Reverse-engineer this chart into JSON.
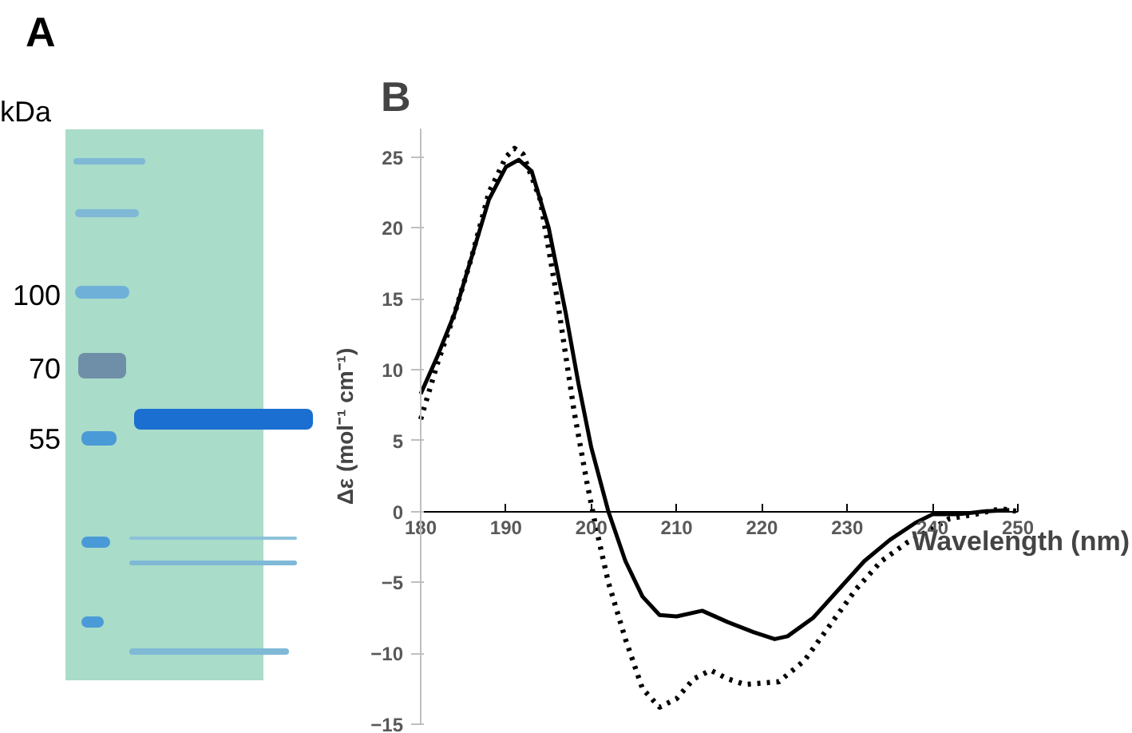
{
  "chart_data": [
    {
      "type": "other",
      "title": "A",
      "annotations": [
        "kDa",
        "100",
        "70",
        "55"
      ]
    },
    {
      "type": "line",
      "title": "B",
      "xlabel": "Wavelength (nm)",
      "ylabel": "Δε (mol⁻¹ cm⁻¹)",
      "xlim": [
        180,
        250
      ],
      "xticks": [
        180,
        190,
        200,
        210,
        220,
        230,
        240,
        250
      ],
      "ylim": [
        -15,
        27
      ],
      "yticks": [
        -15,
        -10,
        -5,
        0,
        5,
        10,
        15,
        20,
        25
      ],
      "grid": false,
      "marker": "none",
      "series": [
        {
          "color": "#000000",
          "line_style": "solid",
          "x": [
            180,
            182,
            184,
            186,
            188,
            190,
            191.5,
            193,
            195,
            197,
            198.5,
            200,
            202,
            204,
            206,
            208,
            210,
            213,
            216,
            219,
            221.5,
            223,
            226,
            229,
            232,
            235,
            238,
            240,
            243,
            246,
            249
          ],
          "values": [
            8.3,
            11,
            14,
            18,
            22,
            24.3,
            24.8,
            24,
            20,
            14,
            9,
            4.5,
            0,
            -3.5,
            -6,
            -7.3,
            -7.4,
            -7,
            -7.8,
            -8.5,
            -9,
            -8.8,
            -7.5,
            -5.5,
            -3.5,
            -2,
            -0.8,
            -0.2,
            -0.2,
            0,
            0.1
          ]
        },
        {
          "color": "#000000",
          "line_style": "dotted",
          "x": [
            180,
            182,
            184,
            186,
            188,
            190,
            191,
            192,
            194,
            196,
            198,
            199.5,
            200.5,
            202,
            204,
            206,
            208,
            210,
            212,
            214,
            216,
            218,
            222,
            225,
            228,
            231,
            234,
            237,
            240,
            242,
            245,
            248,
            250
          ],
          "values": [
            6.5,
            10.5,
            14,
            18,
            22.5,
            25,
            25.6,
            25.2,
            22,
            15,
            7,
            2,
            -1,
            -5,
            -9,
            -12.5,
            -13.8,
            -13.2,
            -11.8,
            -11.2,
            -11.8,
            -12.2,
            -12,
            -10.5,
            -8,
            -5.5,
            -3.5,
            -2.2,
            -1.2,
            -0.5,
            -0.2,
            0.2,
            0
          ]
        }
      ]
    }
  ]
}
